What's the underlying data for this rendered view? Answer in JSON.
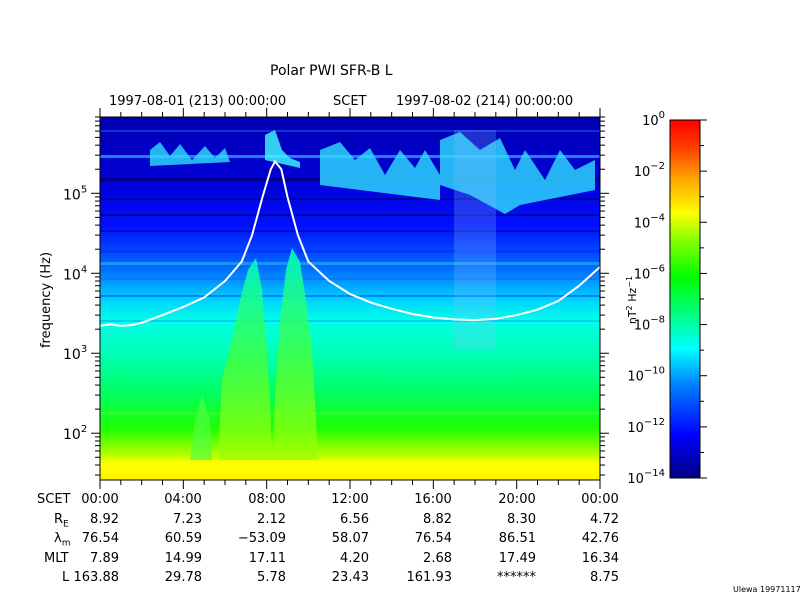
{
  "title": "Polar PWI SFR-B L",
  "header": {
    "start": "1997-08-01 (213) 00:00:00",
    "scet": "SCET",
    "end": "1997-08-02 (214) 00:00:00"
  },
  "footer_credit": "Ulewa 19971117",
  "chart_data": {
    "type": "heatmap",
    "title": "Polar PWI SFR-B L",
    "ylabel": "frequency (Hz)",
    "yscale": "log",
    "ylim_hz": [
      26,
      900000
    ],
    "xlim_hours": [
      0,
      24
    ],
    "y_ticks": [
      {
        "base": "10",
        "exp": "2",
        "value": 100
      },
      {
        "base": "10",
        "exp": "3",
        "value": 1000
      },
      {
        "base": "10",
        "exp": "4",
        "value": 10000
      },
      {
        "base": "10",
        "exp": "5",
        "value": 100000
      }
    ],
    "colorbar": {
      "label_parts": [
        "nT",
        "2",
        " Hz",
        "−1"
      ],
      "scale": "log",
      "range": [
        1e-14,
        1
      ],
      "ticks": [
        {
          "base": "10",
          "exp": "0"
        },
        {
          "base": "10",
          "exp": "−2"
        },
        {
          "base": "10",
          "exp": "−4"
        },
        {
          "base": "10",
          "exp": "−6"
        },
        {
          "base": "10",
          "exp": "−8"
        },
        {
          "base": "10",
          "exp": "−10"
        },
        {
          "base": "10",
          "exp": "−12"
        },
        {
          "base": "10",
          "exp": "−14"
        }
      ],
      "colors": [
        "#00007f",
        "#0000ff",
        "#0080ff",
        "#00ffff",
        "#00ff80",
        "#00ff00",
        "#80ff00",
        "#ffff00",
        "#ffa000",
        "#ff4000",
        "#ff0000"
      ]
    },
    "overlay_curve": {
      "description_hidden": true,
      "points": [
        [
          0.0,
          2200
        ],
        [
          0.5,
          2300
        ],
        [
          1.0,
          2200
        ],
        [
          1.5,
          2250
        ],
        [
          2.0,
          2400
        ],
        [
          3.0,
          3000
        ],
        [
          4.0,
          3800
        ],
        [
          5.0,
          5000
        ],
        [
          6.0,
          8000
        ],
        [
          6.8,
          14000
        ],
        [
          7.3,
          30000
        ],
        [
          7.8,
          90000
        ],
        [
          8.2,
          200000
        ],
        [
          8.4,
          250000
        ],
        [
          8.7,
          200000
        ],
        [
          9.0,
          90000
        ],
        [
          9.5,
          30000
        ],
        [
          10.0,
          14000
        ],
        [
          11.0,
          8000
        ],
        [
          12.0,
          5500
        ],
        [
          13.0,
          4300
        ],
        [
          14.0,
          3600
        ],
        [
          15.0,
          3100
        ],
        [
          16.0,
          2800
        ],
        [
          17.0,
          2650
        ],
        [
          18.0,
          2600
        ],
        [
          19.0,
          2700
        ],
        [
          20.0,
          3000
        ],
        [
          21.0,
          3500
        ],
        [
          22.0,
          4500
        ],
        [
          23.0,
          7000
        ],
        [
          24.0,
          12000
        ]
      ]
    }
  },
  "ephemeris": {
    "row_labels": {
      "scet": "SCET",
      "re_main": "R",
      "re_sub": "E",
      "lam_main": "λ",
      "lam_sub": "m",
      "mlt": "MLT",
      "l": "L"
    },
    "times": [
      "00:00",
      "04:00",
      "08:00",
      "12:00",
      "16:00",
      "20:00",
      "00:00"
    ],
    "re": [
      "8.92",
      "7.23",
      "2.12",
      "6.56",
      "8.82",
      "8.30",
      "4.72"
    ],
    "lam": [
      "76.54",
      "60.59",
      "−53.09",
      "58.07",
      "76.54",
      "86.51",
      "42.76"
    ],
    "mlt": [
      "7.89",
      "14.99",
      "17.11",
      "4.20",
      "2.68",
      "17.49",
      "16.34"
    ],
    "l": [
      "163.88",
      "29.78",
      "5.78",
      "23.43",
      "161.93",
      "******",
      "8.75"
    ]
  }
}
